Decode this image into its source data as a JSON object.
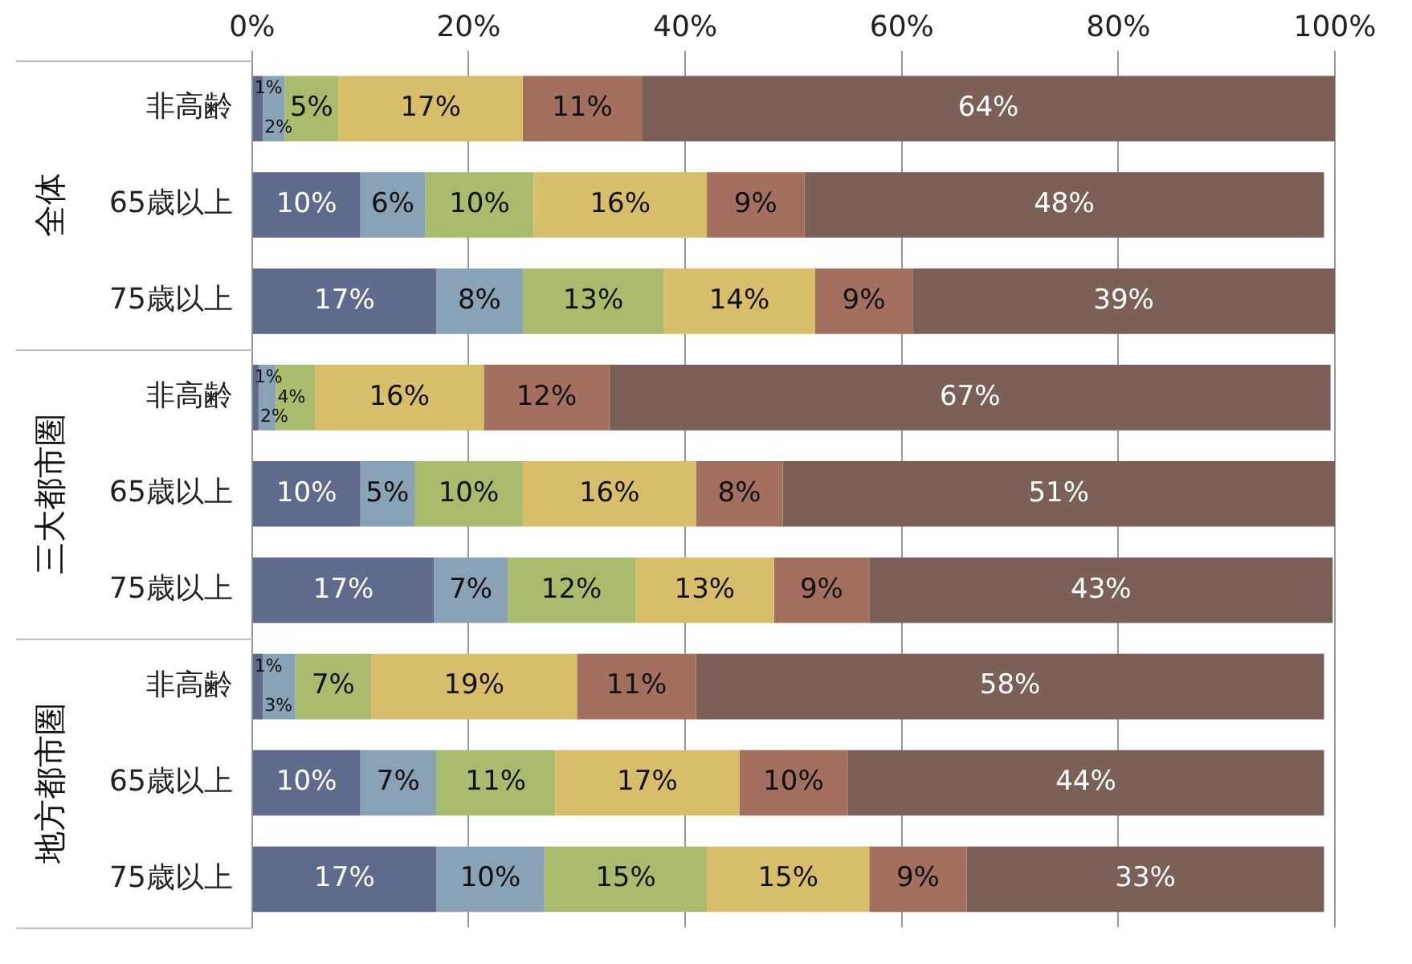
{
  "chart_data": {
    "type": "bar",
    "orientation": "horizontal",
    "stacked": true,
    "grid": "x",
    "legend": false,
    "categories": [
      "非高齢",
      "65歳以上",
      "75歳以上",
      "非高齢",
      "65歳以上",
      "75歳以上",
      "非高齢",
      "65歳以上",
      "75歳以上"
    ],
    "annotations": [
      "全体",
      "三大都市圏",
      "地方都市圏"
    ],
    "xlim": [
      0,
      100
    ],
    "xticks": [
      {
        "value": 0,
        "label": "0%"
      },
      {
        "value": 20,
        "label": "20%"
      },
      {
        "value": 40,
        "label": "40%"
      },
      {
        "value": 60,
        "label": "60%"
      },
      {
        "value": 80,
        "label": "80%"
      },
      {
        "value": 100,
        "label": "100%"
      }
    ],
    "series": [
      {
        "color": "#5f6a8c",
        "values": [
          1,
          10,
          17,
          0.6,
          10,
          16.8,
          1,
          10,
          17
        ],
        "value_labels": [
          "1%",
          "10%",
          "17%",
          "1%",
          "10%",
          "17%",
          "1%",
          "10%",
          "17%"
        ]
      },
      {
        "color": "#8aa2b6",
        "values": [
          2,
          6,
          8,
          1.6,
          5,
          6.8,
          3,
          7,
          10
        ],
        "value_labels": [
          "2%",
          "6%",
          "8%",
          "2%",
          "5%",
          "7%",
          "3%",
          "7%",
          "10%"
        ]
      },
      {
        "color": "#a9bb6c",
        "values": [
          5,
          10,
          13,
          3.6,
          10,
          11.8,
          7,
          11,
          15
        ],
        "value_labels": [
          "5%",
          "10%",
          "13%",
          "4%",
          "10%",
          "12%",
          "7%",
          "11%",
          "15%"
        ]
      },
      {
        "color": "#d8bd6b",
        "values": [
          17,
          16,
          14,
          15.6,
          16,
          12.8,
          19,
          17,
          15
        ],
        "value_labels": [
          "17%",
          "16%",
          "14%",
          "16%",
          "16%",
          "13%",
          "19%",
          "17%",
          "15%"
        ]
      },
      {
        "color": "#a3705f",
        "values": [
          11,
          9,
          9,
          11.6,
          8,
          8.8,
          11,
          10,
          9
        ],
        "value_labels": [
          "11%",
          "9%",
          "9%",
          "12%",
          "8%",
          "9%",
          "11%",
          "10%",
          "9%"
        ]
      },
      {
        "color": "#7b6058",
        "values": [
          64,
          48,
          39,
          66.6,
          51,
          42.8,
          58,
          44,
          33
        ],
        "value_labels": [
          "64%",
          "48%",
          "39%",
          "67%",
          "51%",
          "43%",
          "58%",
          "44%",
          "33%"
        ]
      }
    ]
  }
}
